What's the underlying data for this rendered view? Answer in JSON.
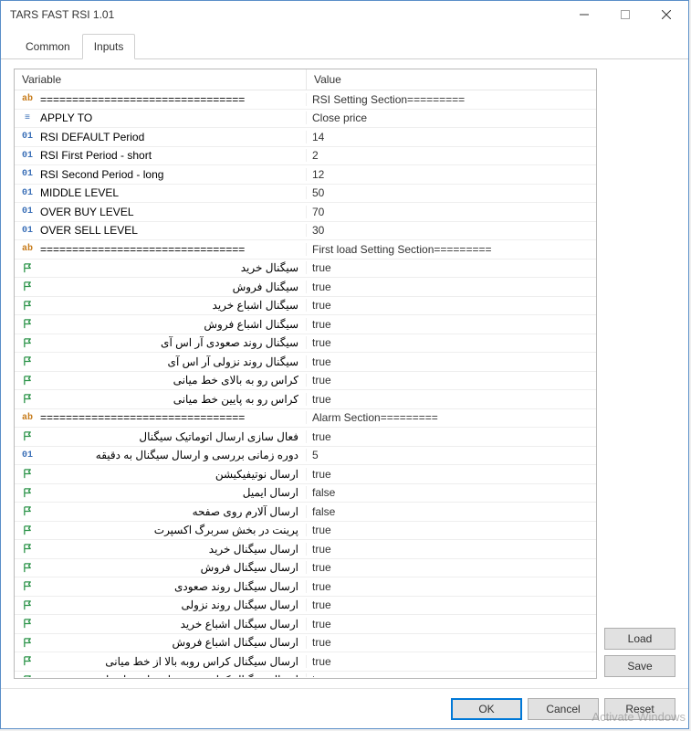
{
  "window": {
    "title": "TARS FAST RSI 1.01"
  },
  "tabs": {
    "common": "Common",
    "inputs": "Inputs"
  },
  "headers": {
    "variable": "Variable",
    "value": "Value"
  },
  "icons": {
    "ab": "ab",
    "enum": "≡",
    "int": "01"
  },
  "rows": [
    {
      "type": "ab",
      "var": "================================",
      "val": "RSI Setting Section========="
    },
    {
      "type": "enum",
      "var": "APPLY TO",
      "val": "Close price"
    },
    {
      "type": "int",
      "var": "RSI DEFAULT Period",
      "val": "14"
    },
    {
      "type": "int",
      "var": "RSI First Period - short",
      "val": "2"
    },
    {
      "type": "int",
      "var": "RSI Second Period - long",
      "val": "12"
    },
    {
      "type": "int",
      "var": "MIDDLE LEVEL",
      "val": "50"
    },
    {
      "type": "int",
      "var": "OVER BUY LEVEL",
      "val": "70"
    },
    {
      "type": "int",
      "var": "OVER SELL LEVEL",
      "val": "30"
    },
    {
      "type": "ab",
      "var": "================================",
      "val": "First load Setting Section========="
    },
    {
      "type": "bool",
      "rtl": true,
      "var": "سیگنال خرید",
      "val": "true"
    },
    {
      "type": "bool",
      "rtl": true,
      "var": "سیگنال فروش",
      "val": "true"
    },
    {
      "type": "bool",
      "rtl": true,
      "var": "سیگنال اشباع خرید",
      "val": "true"
    },
    {
      "type": "bool",
      "rtl": true,
      "var": "سیگنال اشباع فروش",
      "val": "true"
    },
    {
      "type": "bool",
      "rtl": true,
      "var": "سیگنال روند صعودی آر اس آی",
      "val": "true"
    },
    {
      "type": "bool",
      "rtl": true,
      "var": "سیگنال روند نزولی آر اس آی",
      "val": "true"
    },
    {
      "type": "bool",
      "rtl": true,
      "var": "کراس رو به بالای خط میانی",
      "val": "true"
    },
    {
      "type": "bool",
      "rtl": true,
      "var": "کراس رو به پایین خط میانی",
      "val": "true"
    },
    {
      "type": "ab",
      "var": "================================",
      "val": "Alarm Section========="
    },
    {
      "type": "bool",
      "rtl": true,
      "var": "فعال سازی ارسال اتوماتیک سیگنال",
      "val": "true"
    },
    {
      "type": "int",
      "rtl": true,
      "var": "دوره زمانی بررسی و ارسال سیگنال به دقیقه",
      "val": "5"
    },
    {
      "type": "bool",
      "rtl": true,
      "var": "ارسال نوتیفیکیشن",
      "val": "true"
    },
    {
      "type": "bool",
      "rtl": true,
      "var": "ارسال ایمیل",
      "val": "false"
    },
    {
      "type": "bool",
      "rtl": true,
      "var": "ارسال آلارم روی صفحه",
      "val": "false"
    },
    {
      "type": "bool",
      "rtl": true,
      "var": "پرینت در بخش سربرگ اکسپرت",
      "val": "true"
    },
    {
      "type": "bool",
      "rtl": true,
      "var": "ارسال سیگنال خرید",
      "val": "true"
    },
    {
      "type": "bool",
      "rtl": true,
      "var": "ارسال سیگنال فروش",
      "val": "true"
    },
    {
      "type": "bool",
      "rtl": true,
      "var": "ارسال سیگنال روند صعودی",
      "val": "true"
    },
    {
      "type": "bool",
      "rtl": true,
      "var": "ارسال سیگنال روند نزولی",
      "val": "true"
    },
    {
      "type": "bool",
      "rtl": true,
      "var": "ارسال سیگنال اشباع خرید",
      "val": "true"
    },
    {
      "type": "bool",
      "rtl": true,
      "var": "ارسال سیگنال اشباع فروش",
      "val": "true"
    },
    {
      "type": "bool",
      "rtl": true,
      "var": "ارسال سیگنال کراس روبه بالا از خط میانی",
      "val": "true"
    },
    {
      "type": "bool",
      "rtl": true,
      "var": "ارسال سیگنال کراس رو به پایین از خط میانی",
      "val": "true"
    }
  ],
  "buttons": {
    "load": "Load",
    "save": "Save",
    "ok": "OK",
    "cancel": "Cancel",
    "reset": "Reset"
  },
  "watermark": "Activate Windows"
}
